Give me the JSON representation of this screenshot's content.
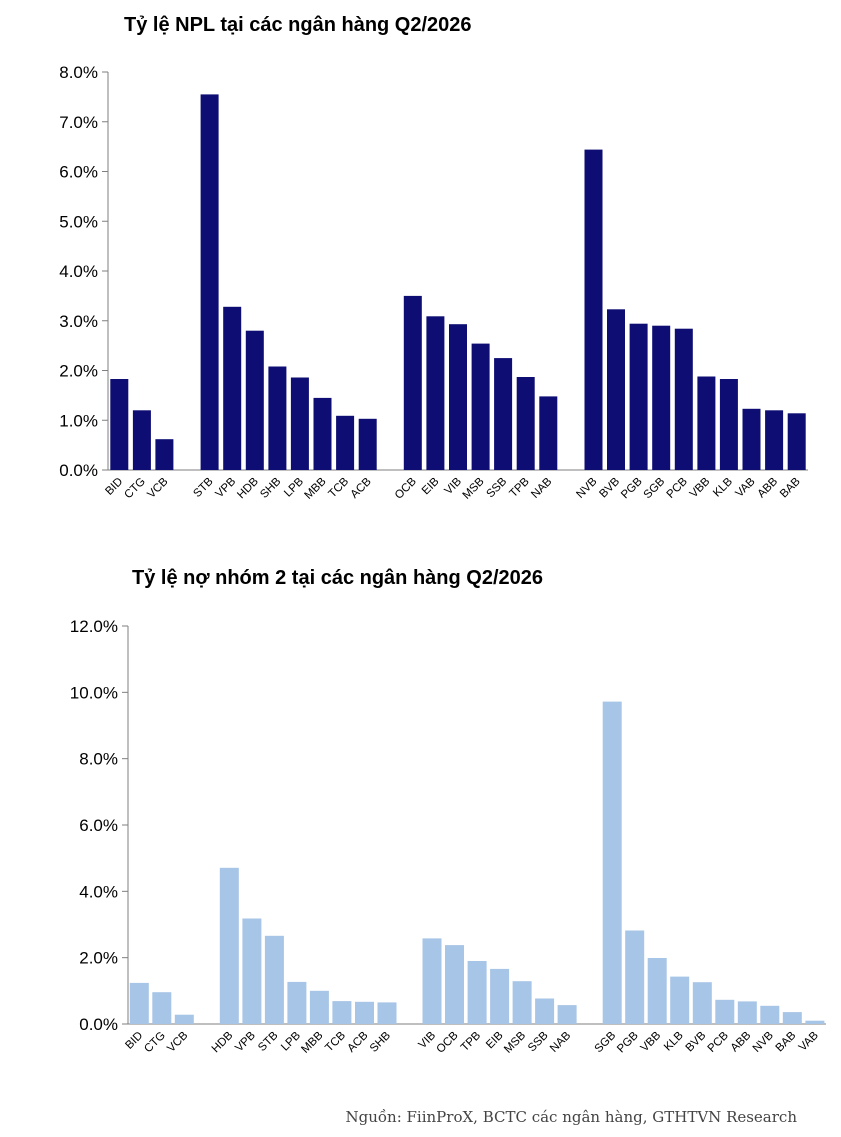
{
  "chart_data": [
    {
      "type": "bar",
      "title": "Tỷ lệ NPL tại các ngân hàng Q2/2026",
      "color": "#0d0d73",
      "ylim": [
        0,
        8
      ],
      "yticks": [
        "0.0%",
        "1.0%",
        "2.0%",
        "3.0%",
        "4.0%",
        "5.0%",
        "6.0%",
        "7.0%",
        "8.0%"
      ],
      "groups": [
        {
          "categories": [
            "BID",
            "CTG",
            "VCB"
          ],
          "values": [
            1.83,
            1.2,
            0.62
          ]
        },
        {
          "categories": [
            "STB",
            "VPB",
            "HDB",
            "SHB",
            "LPB",
            "MBB",
            "TCB",
            "ACB"
          ],
          "values": [
            7.55,
            3.28,
            2.8,
            2.08,
            1.86,
            1.45,
            1.09,
            1.03
          ]
        },
        {
          "categories": [
            "OCB",
            "EIB",
            "VIB",
            "MSB",
            "SSB",
            "TPB",
            "NAB"
          ],
          "values": [
            3.5,
            3.09,
            2.93,
            2.54,
            2.25,
            1.87,
            1.48
          ]
        },
        {
          "categories": [
            "NVB",
            "BVB",
            "PGB",
            "SGB",
            "PCB",
            "VBB",
            "KLB",
            "VAB",
            "ABB",
            "BAB"
          ],
          "values": [
            6.44,
            3.23,
            2.94,
            2.9,
            2.84,
            1.88,
            1.83,
            1.23,
            1.2,
            1.14
          ]
        }
      ]
    },
    {
      "type": "bar",
      "title": "Tỷ lệ nợ nhóm 2 tại các ngân hàng Q2/2026",
      "color": "#a7c5e6",
      "ylim": [
        0,
        12
      ],
      "yticks": [
        "0.0%",
        "2.0%",
        "4.0%",
        "6.0%",
        "8.0%",
        "10.0%",
        "12.0%"
      ],
      "groups": [
        {
          "categories": [
            "BID",
            "CTG",
            "VCB"
          ],
          "values": [
            1.24,
            0.96,
            0.28
          ]
        },
        {
          "categories": [
            "HDB",
            "VPB",
            "STB",
            "LPB",
            "MBB",
            "TCB",
            "ACB",
            "SHB"
          ],
          "values": [
            4.71,
            3.18,
            2.66,
            1.27,
            1.0,
            0.69,
            0.67,
            0.65
          ]
        },
        {
          "categories": [
            "VIB",
            "OCB",
            "TPB",
            "EIB",
            "MSB",
            "SSB",
            "NAB"
          ],
          "values": [
            2.58,
            2.38,
            1.9,
            1.66,
            1.29,
            0.77,
            0.57
          ]
        },
        {
          "categories": [
            "SGB",
            "PGB",
            "VBB",
            "KLB",
            "BVB",
            "PCB",
            "ABB",
            "NVB",
            "BAB",
            "VAB"
          ],
          "values": [
            9.72,
            2.82,
            1.99,
            1.43,
            1.26,
            0.73,
            0.68,
            0.55,
            0.36,
            0.1
          ]
        }
      ]
    }
  ],
  "source": "Nguồn: FiinProX, BCTC các ngân hàng, GTHTVN Research"
}
